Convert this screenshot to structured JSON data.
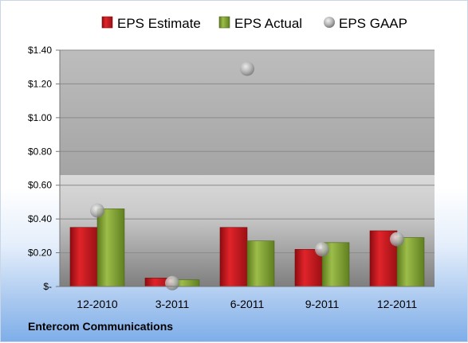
{
  "company": "Entercom Communications",
  "chart_data": {
    "type": "bar",
    "categories": [
      "12-2010",
      "3-2011",
      "6-2011",
      "9-2011",
      "12-2011"
    ],
    "series": [
      {
        "name": "EPS Estimate",
        "kind": "bar",
        "color": "#c0171c",
        "values": [
          0.35,
          0.05,
          0.35,
          0.22,
          0.33
        ]
      },
      {
        "name": "EPS Actual",
        "kind": "bar",
        "color": "#7a9a2e",
        "values": [
          0.46,
          0.04,
          0.27,
          0.26,
          0.29
        ]
      },
      {
        "name": "EPS GAAP",
        "kind": "scatter",
        "color": "#a8a8a8",
        "values": [
          0.45,
          0.02,
          1.29,
          0.22,
          0.28
        ]
      }
    ],
    "ylim": [
      0,
      1.4
    ],
    "yticks": [
      {
        "value": 0,
        "label": "$-"
      },
      {
        "value": 0.2,
        "label": "$0.20"
      },
      {
        "value": 0.4,
        "label": "$0.40"
      },
      {
        "value": 0.6,
        "label": "$0.60"
      },
      {
        "value": 0.8,
        "label": "$0.80"
      },
      {
        "value": 1.0,
        "label": "$1.00"
      },
      {
        "value": 1.2,
        "label": "$1.20"
      },
      {
        "value": 1.4,
        "label": "$1.40"
      }
    ],
    "grid": true,
    "legend_position": "top"
  }
}
